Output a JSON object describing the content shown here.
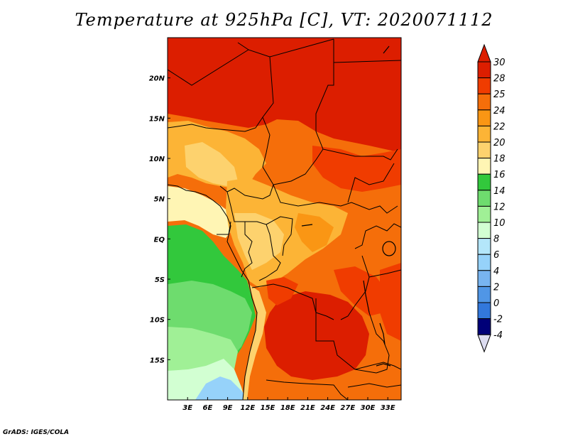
{
  "title": "Temperature at 925hPa [C], VT: 2020071112",
  "credit": "GrADS: IGES/COLA",
  "map": {
    "lon_range": [
      0,
      35
    ],
    "lat_range": [
      -20,
      25
    ],
    "lat_ticks": [
      {
        "value": 20,
        "label": "20N"
      },
      {
        "value": 15,
        "label": "15N"
      },
      {
        "value": 10,
        "label": "10N"
      },
      {
        "value": 5,
        "label": "5N"
      },
      {
        "value": 0,
        "label": "EQ"
      },
      {
        "value": -5,
        "label": "5S"
      },
      {
        "value": -10,
        "label": "10S"
      },
      {
        "value": -15,
        "label": "15S"
      }
    ],
    "lon_ticks": [
      {
        "value": 3,
        "label": "3E"
      },
      {
        "value": 6,
        "label": "6E"
      },
      {
        "value": 9,
        "label": "9E"
      },
      {
        "value": 12,
        "label": "12E"
      },
      {
        "value": 15,
        "label": "15E"
      },
      {
        "value": 18,
        "label": "18E"
      },
      {
        "value": 21,
        "label": "21E"
      },
      {
        "value": 24,
        "label": "24E"
      },
      {
        "value": 27,
        "label": "27E"
      },
      {
        "value": 30,
        "label": "30E"
      },
      {
        "value": 33,
        "label": "33E"
      }
    ]
  },
  "colorbar": {
    "levels": [
      {
        "label": "30",
        "color": "#dc1e00"
      },
      {
        "label": "28",
        "color": "#f03c00"
      },
      {
        "label": "25",
        "color": "#f56e0a"
      },
      {
        "label": "24",
        "color": "#fa9614"
      },
      {
        "label": "22",
        "color": "#fcb436"
      },
      {
        "label": "20",
        "color": "#fdd26e"
      },
      {
        "label": "18",
        "color": "#fff5b4"
      },
      {
        "label": "16",
        "color": "#32c83c"
      },
      {
        "label": "14",
        "color": "#6edc6e"
      },
      {
        "label": "12",
        "color": "#a0f096"
      },
      {
        "label": "10",
        "color": "#d2ffd2"
      },
      {
        "label": "8",
        "color": "#b4e6fa"
      },
      {
        "label": "6",
        "color": "#96d2fa"
      },
      {
        "label": "4",
        "color": "#78b4f0"
      },
      {
        "label": "2",
        "color": "#5096e6"
      },
      {
        "label": "0",
        "color": "#3278dc"
      },
      {
        "label": "-2",
        "color": "#1e5ac8"
      },
      {
        "label": "-4",
        "color": "#0a32a0"
      }
    ],
    "top_color": "#dc1e00",
    "bottom_color": "#dcdcf0",
    "lowest_color": "#000078"
  }
}
